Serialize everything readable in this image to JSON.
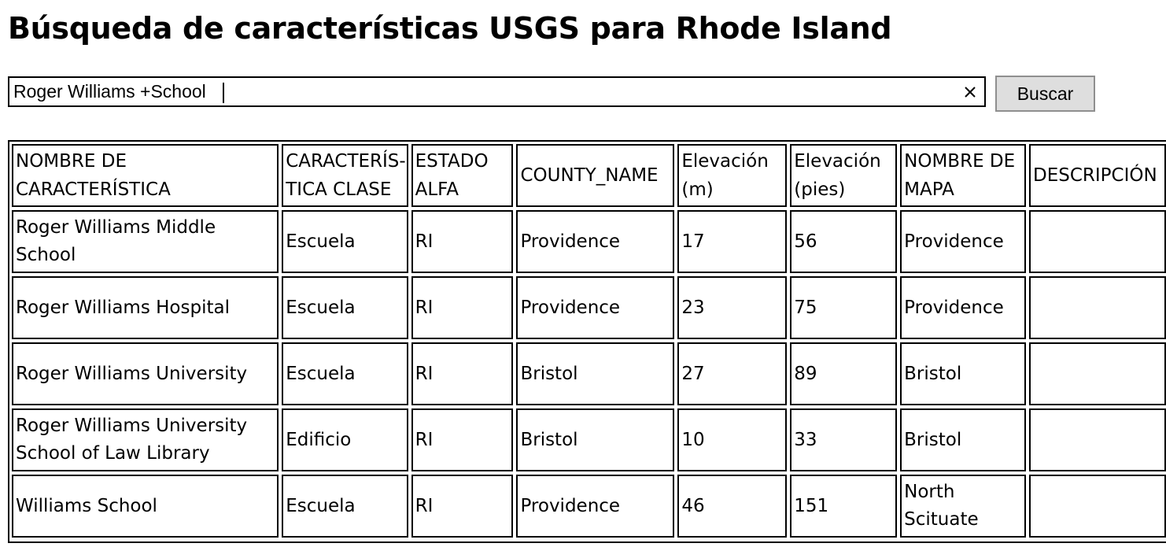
{
  "page": {
    "title": "Búsqueda de características USGS para Rhode Island"
  },
  "search": {
    "value": "Roger Williams +School",
    "placeholder": "",
    "clear_icon": "close-icon",
    "button_label": "Buscar"
  },
  "table": {
    "headers": {
      "feature_name": "NOMBRE DE CARACTERÍSTICA",
      "feature_class": "CARACTERÍS-TICA CLASE",
      "state_alpha": "ESTADO ALFA",
      "county_name": "COUNTY_NAME",
      "elev_m": "Elevación (m)",
      "elev_ft": "Elevación (pies)",
      "map_name": "NOMBRE DE MAPA",
      "description": "DESCRIPCIÓN"
    },
    "rows": [
      {
        "feature_name": "Roger Williams Middle School",
        "feature_class": "Escuela",
        "state_alpha": "RI",
        "county_name": "Providence",
        "elev_m": "17",
        "elev_ft": "56",
        "map_name": "Providence",
        "description": ""
      },
      {
        "feature_name": "Roger Williams Hospital",
        "feature_class": "Escuela",
        "state_alpha": "RI",
        "county_name": "Providence",
        "elev_m": "23",
        "elev_ft": "75",
        "map_name": "Providence",
        "description": ""
      },
      {
        "feature_name": "Roger Williams University",
        "feature_class": "Escuela",
        "state_alpha": "RI",
        "county_name": "Bristol",
        "elev_m": "27",
        "elev_ft": "89",
        "map_name": "Bristol",
        "description": ""
      },
      {
        "feature_name": "Roger Williams University School of Law Library",
        "feature_class": "Edificio",
        "state_alpha": "RI",
        "county_name": "Bristol",
        "elev_m": "10",
        "elev_ft": "33",
        "map_name": "Bristol",
        "description": ""
      },
      {
        "feature_name": "Williams School",
        "feature_class": "Escuela",
        "state_alpha": "RI",
        "county_name": "Providence",
        "elev_m": "46",
        "elev_ft": "151",
        "map_name": "North Scituate",
        "description": ""
      }
    ]
  }
}
